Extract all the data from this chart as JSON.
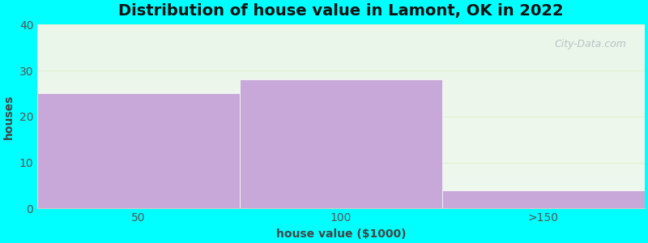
{
  "categories": [
    "50",
    "100",
    ">150"
  ],
  "values": [
    25,
    28,
    4
  ],
  "bar_color": "#c8a8d8",
  "title": "Distribution of house value in Lamont, OK in 2022",
  "xlabel": "house value ($1000)",
  "ylabel": "houses",
  "ylim": [
    0,
    40
  ],
  "yticks": [
    0,
    10,
    20,
    30,
    40
  ],
  "title_fontsize": 14,
  "label_fontsize": 10,
  "tick_fontsize": 10,
  "plot_bg_top": "#e8f5e8",
  "plot_bg_bottom": "#f0faf0",
  "outer_bg_color": "#00ffff",
  "watermark": "City-Data.com",
  "figsize": [
    8.0,
    3.0
  ],
  "dpi": 100
}
